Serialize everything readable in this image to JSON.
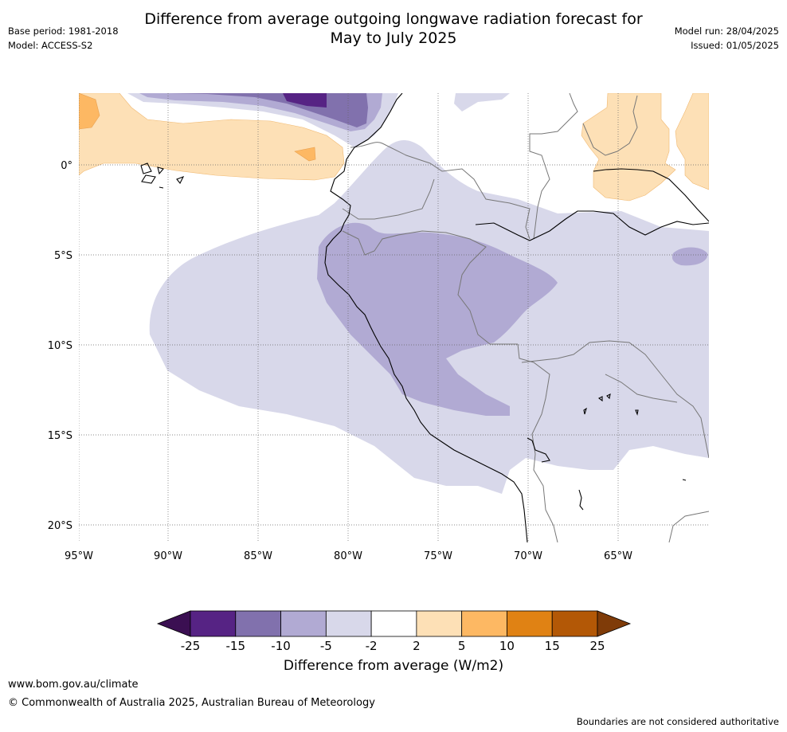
{
  "title_line1": "Difference from average outgoing longwave radiation forecast for",
  "title_line2": "May to July 2025",
  "base_period": "Base period: 1981-2018",
  "model": "Model: ACCESS-S2",
  "model_run": "Model run: 28/04/2025",
  "issued": "Issued: 01/05/2025",
  "map": {
    "lon_labels": [
      "95°W",
      "90°W",
      "85°W",
      "80°W",
      "75°W",
      "70°W",
      "65°W"
    ],
    "lat_labels": [
      "0°",
      "5°S",
      "10°S",
      "15°S",
      "20°S"
    ],
    "lon_values": [
      -95,
      -90,
      -85,
      -80,
      -75,
      -70,
      -65
    ],
    "lat_values": [
      0,
      -5,
      -10,
      -15,
      -20
    ],
    "lon_range": [
      -95,
      -60
    ],
    "lat_range": [
      -21,
      4
    ]
  },
  "colorbar": {
    "title": "Difference from average (W/m2)",
    "tick_labels": [
      "-25",
      "-15",
      "-10",
      "-5",
      "-2",
      "2",
      "5",
      "10",
      "15",
      "25"
    ],
    "colors": [
      "#3b0f52",
      "#562384",
      "#8171ad",
      "#b1aad3",
      "#d8d8ea",
      "#ffffff",
      "#fde0b6",
      "#fdb863",
      "#e08214",
      "#b35806",
      "#7f3b08"
    ]
  },
  "footer": {
    "url": "www.bom.gov.au/climate",
    "copyright": "© Commonwealth of Australia 2025, Australian Bureau of Meteorology",
    "note": "Boundaries are not considered authoritative"
  }
}
